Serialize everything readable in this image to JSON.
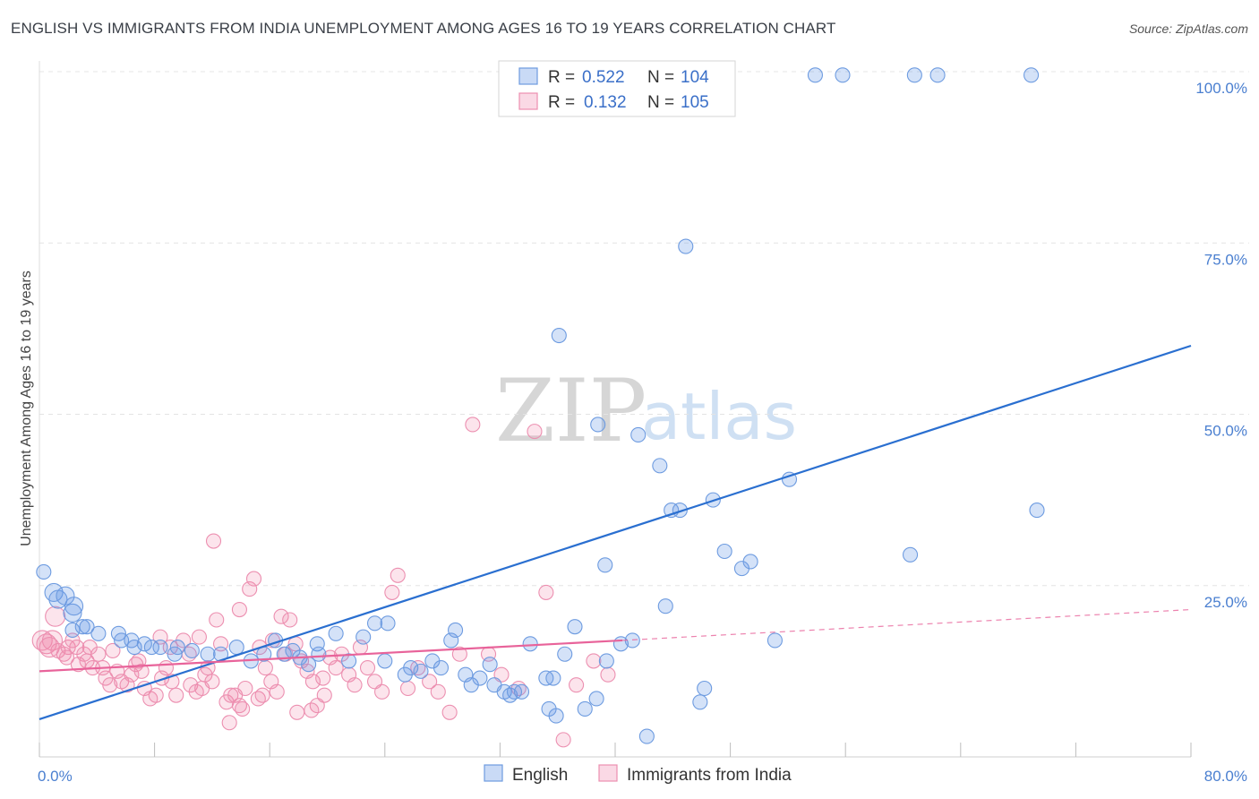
{
  "title": "ENGLISH VS IMMIGRANTS FROM INDIA UNEMPLOYMENT AMONG AGES 16 TO 19 YEARS CORRELATION CHART",
  "source": "Source: ZipAtlas.com",
  "watermark": {
    "zip": "ZIP",
    "atlas": "atlas"
  },
  "colors": {
    "english_fill": "rgba(100,150,230,0.28)",
    "english_stroke": "#6d9be0",
    "english_line": "#2a6fd0",
    "india_fill": "rgba(240,130,170,0.22)",
    "india_stroke": "#ec8fb0",
    "india_line": "#e8639a",
    "tick_color": "#4a7fd0",
    "grid": "#e4e4e4"
  },
  "legend": {
    "rows": [
      {
        "r_label": "R =",
        "r_value": "0.522",
        "n_label": "N =",
        "n_value": "104"
      },
      {
        "r_label": "R =",
        "r_value": "0.132",
        "n_label": "N =",
        "n_value": "105"
      }
    ]
  },
  "bottom_legend": [
    "English",
    "Immigrants from India"
  ],
  "chart_data": {
    "type": "scatter",
    "title": "ENGLISH VS IMMIGRANTS FROM INDIA UNEMPLOYMENT AMONG AGES 16 TO 19 YEARS CORRELATION CHART",
    "xlabel": "",
    "ylabel": "Unemployment Among Ages 16 to 19 years",
    "xlim": [
      0,
      80
    ],
    "ylim": [
      0,
      100
    ],
    "x_tick_labels": [
      {
        "value": 0,
        "label": "0.0%"
      },
      {
        "value": 80,
        "label": "80.0%"
      }
    ],
    "y_tick_labels": [
      {
        "value": 100,
        "label": "100.0%"
      },
      {
        "value": 75,
        "label": "75.0%"
      },
      {
        "value": 50,
        "label": "50.0%"
      },
      {
        "value": 25,
        "label": "25.0%"
      }
    ],
    "grid": true,
    "legend_placement": "top-center",
    "series": [
      {
        "name": "English",
        "r": 0.522,
        "n": 104,
        "trend": {
          "x": [
            0,
            80
          ],
          "y": [
            5.5,
            60
          ]
        },
        "points": [
          [
            0.3,
            27
          ],
          [
            1,
            24
          ],
          [
            1.3,
            23
          ],
          [
            1.8,
            23.5
          ],
          [
            2.3,
            21
          ],
          [
            2.4,
            22
          ],
          [
            2.3,
            18.5
          ],
          [
            3,
            19
          ],
          [
            3.3,
            19
          ],
          [
            4.1,
            18
          ],
          [
            5.5,
            18
          ],
          [
            5.7,
            17
          ],
          [
            6.4,
            17
          ],
          [
            6.6,
            16
          ],
          [
            7.3,
            16.5
          ],
          [
            7.8,
            16
          ],
          [
            8.4,
            16
          ],
          [
            9.4,
            15
          ],
          [
            9.6,
            16
          ],
          [
            10.6,
            15.5
          ],
          [
            11.7,
            15
          ],
          [
            12.6,
            15
          ],
          [
            13.7,
            16
          ],
          [
            14.7,
            14
          ],
          [
            15.6,
            15
          ],
          [
            16.4,
            17
          ],
          [
            17,
            15
          ],
          [
            17.6,
            15.5
          ],
          [
            18.1,
            14.5
          ],
          [
            18.7,
            13.5
          ],
          [
            19.3,
            16.5
          ],
          [
            19.4,
            15
          ],
          [
            20.6,
            18
          ],
          [
            21.5,
            14
          ],
          [
            22.5,
            17.5
          ],
          [
            23.3,
            19.5
          ],
          [
            24.2,
            19.5
          ],
          [
            24,
            14
          ],
          [
            25.4,
            12
          ],
          [
            25.8,
            13
          ],
          [
            26.5,
            12.5
          ],
          [
            27.3,
            14
          ],
          [
            27.9,
            13
          ],
          [
            28.6,
            17
          ],
          [
            28.9,
            18.5
          ],
          [
            29.6,
            12
          ],
          [
            30,
            10.5
          ],
          [
            30.6,
            11.5
          ],
          [
            31.3,
            13.5
          ],
          [
            31.6,
            10.5
          ],
          [
            32.3,
            9.5
          ],
          [
            32.7,
            9
          ],
          [
            33,
            9.5
          ],
          [
            33.5,
            9.5
          ],
          [
            34.1,
            16.5
          ],
          [
            35.2,
            11.5
          ],
          [
            35.4,
            7
          ],
          [
            35.7,
            11.5
          ],
          [
            35.9,
            6
          ],
          [
            36.5,
            15
          ],
          [
            36.1,
            61.5
          ],
          [
            37.2,
            19
          ],
          [
            37.9,
            7
          ],
          [
            38.7,
            8.5
          ],
          [
            38.8,
            48.5
          ],
          [
            39.3,
            28
          ],
          [
            39.4,
            14
          ],
          [
            40.4,
            16.5
          ],
          [
            41.2,
            17
          ],
          [
            41.6,
            47
          ],
          [
            42.2,
            3
          ],
          [
            43.5,
            22
          ],
          [
            43.1,
            42.5
          ],
          [
            43.9,
            36
          ],
          [
            44.5,
            36
          ],
          [
            44.9,
            74.5
          ],
          [
            46.2,
            10
          ],
          [
            45.9,
            8
          ],
          [
            46.8,
            37.5
          ],
          [
            47.6,
            30
          ],
          [
            48.8,
            27.5
          ],
          [
            49.4,
            28.5
          ],
          [
            51.1,
            17
          ],
          [
            52.1,
            40.5
          ],
          [
            53.9,
            99.5
          ],
          [
            55.8,
            99.5
          ],
          [
            60.5,
            29.5
          ],
          [
            60.8,
            99.5
          ],
          [
            62.4,
            99.5
          ],
          [
            68.9,
            99.5
          ],
          [
            69.3,
            36
          ]
        ]
      },
      {
        "name": "Immigrants from India",
        "r": 0.132,
        "n": 105,
        "trend": {
          "x": [
            0,
            40.5
          ],
          "y": [
            12.5,
            17
          ]
        },
        "trend_dashed": {
          "x": [
            40.5,
            80
          ],
          "y": [
            17,
            21.5
          ]
        },
        "points": [
          [
            0.2,
            17
          ],
          [
            0.5,
            16.5
          ],
          [
            0.9,
            17
          ],
          [
            1.1,
            20.5
          ],
          [
            1.3,
            15.5
          ],
          [
            1.7,
            15
          ],
          [
            2,
            16
          ],
          [
            2.3,
            17
          ],
          [
            2.6,
            16
          ],
          [
            3.1,
            15
          ],
          [
            3.3,
            14
          ],
          [
            3.7,
            13
          ],
          [
            4.1,
            15
          ],
          [
            4.6,
            11.5
          ],
          [
            4.9,
            10.5
          ],
          [
            5.4,
            12.5
          ],
          [
            5.7,
            11
          ],
          [
            6.1,
            10.5
          ],
          [
            6.4,
            12
          ],
          [
            6.7,
            13.5
          ],
          [
            7.1,
            12.5
          ],
          [
            7.3,
            10
          ],
          [
            7.7,
            8.5
          ],
          [
            8.1,
            9
          ],
          [
            8.5,
            11.5
          ],
          [
            8.8,
            13
          ],
          [
            9.2,
            11
          ],
          [
            9.5,
            9
          ],
          [
            10,
            17
          ],
          [
            10.4,
            15
          ],
          [
            10.5,
            10.5
          ],
          [
            10.9,
            9.5
          ],
          [
            11.3,
            10
          ],
          [
            11.5,
            12
          ],
          [
            11.7,
            13
          ],
          [
            12,
            11
          ],
          [
            12.3,
            20
          ],
          [
            12.6,
            16.5
          ],
          [
            13,
            8
          ],
          [
            13.3,
            9
          ],
          [
            13.6,
            9
          ],
          [
            13.9,
            7.5
          ],
          [
            14.3,
            10
          ],
          [
            14.6,
            24.5
          ],
          [
            14.9,
            26
          ],
          [
            15.3,
            16
          ],
          [
            15.7,
            13
          ],
          [
            16.1,
            11
          ],
          [
            16.5,
            9.5
          ],
          [
            16.8,
            20.5
          ],
          [
            17.1,
            15
          ],
          [
            17.4,
            20
          ],
          [
            17.8,
            16.5
          ],
          [
            18.2,
            14
          ],
          [
            18.6,
            12.5
          ],
          [
            19,
            11
          ],
          [
            19.3,
            7.5
          ],
          [
            19.7,
            11.5
          ],
          [
            20.2,
            14.5
          ],
          [
            20.6,
            13
          ],
          [
            21,
            15
          ],
          [
            21.5,
            12
          ],
          [
            21.9,
            10.5
          ],
          [
            22.3,
            16
          ],
          [
            22.8,
            13
          ],
          [
            23.3,
            11
          ],
          [
            23.8,
            9.5
          ],
          [
            24.5,
            24
          ],
          [
            24.9,
            26.5
          ],
          [
            25.6,
            10
          ],
          [
            26.3,
            13
          ],
          [
            27.1,
            11
          ],
          [
            27.7,
            9.5
          ],
          [
            28.5,
            6.5
          ],
          [
            29.2,
            15
          ],
          [
            30.1,
            48.5
          ],
          [
            31.2,
            15
          ],
          [
            32.1,
            12
          ],
          [
            33.3,
            10
          ],
          [
            34.4,
            47.5
          ],
          [
            35.2,
            24
          ],
          [
            36.4,
            2.5
          ],
          [
            37.3,
            10.5
          ],
          [
            38.5,
            14
          ],
          [
            39.5,
            12
          ],
          [
            12.1,
            31.5
          ],
          [
            13.9,
            21.5
          ],
          [
            15.2,
            8.5
          ],
          [
            16.2,
            17
          ],
          [
            17.9,
            6.5
          ],
          [
            9.1,
            16
          ],
          [
            8.4,
            17.5
          ],
          [
            6.9,
            14
          ],
          [
            5.1,
            15.5
          ],
          [
            3.5,
            16
          ],
          [
            2.7,
            13.5
          ],
          [
            4.4,
            13
          ],
          [
            1.9,
            14.5
          ],
          [
            0.7,
            16
          ],
          [
            11.1,
            17.5
          ],
          [
            13.2,
            5
          ],
          [
            14.1,
            7
          ],
          [
            15.5,
            9
          ],
          [
            18.9,
            6.8
          ],
          [
            19.8,
            9
          ]
        ]
      }
    ]
  }
}
